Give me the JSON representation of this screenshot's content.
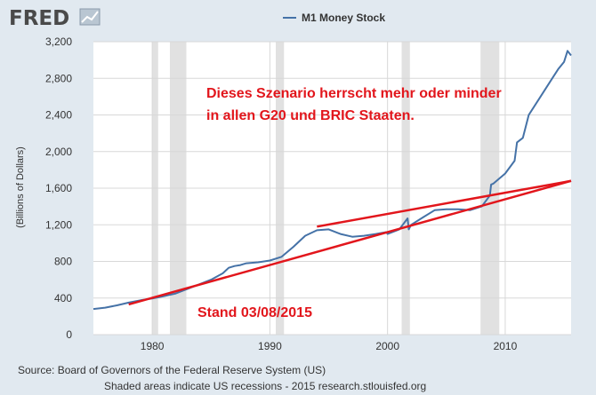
{
  "branding": {
    "logo_text": "FRED",
    "logo_color": "#4a4a4a",
    "logo_icon": "line-chart-icon"
  },
  "footer": {
    "source": "Source: Board of Governors of the Federal Reserve System (US)",
    "note": "Shaded areas indicate US recessions - 2015 research.stlouisfed.org"
  },
  "annotations": {
    "line1": "Dieses Szenario herrscht mehr oder minder",
    "line2": "in allen G20 und BRIC Staaten.",
    "stand": "Stand 03/08/2015",
    "color": "#e2161c"
  },
  "chart_data": {
    "type": "line",
    "title": "",
    "xlabel": "",
    "ylabel": "(Billions of Dollars)",
    "xlim": [
      1975,
      2015.6
    ],
    "ylim": [
      0,
      3200
    ],
    "xticks": [
      1980,
      1990,
      2000,
      2010
    ],
    "xtick_labels": [
      "1980",
      "1990",
      "2000",
      "2010"
    ],
    "yticks": [
      0,
      400,
      800,
      1200,
      1600,
      2000,
      2400,
      2800,
      3200
    ],
    "ytick_labels": [
      "0",
      "400",
      "800",
      "1,200",
      "1,600",
      "2,000",
      "2,400",
      "2,800",
      "3,200"
    ],
    "grid": true,
    "legend_position": "top-center",
    "series": [
      {
        "name": "M1 Money Stock",
        "color": "#4572a7",
        "x": [
          1975,
          1976,
          1977,
          1978,
          1979,
          1980,
          1981,
          1982,
          1983,
          1984,
          1985,
          1986,
          1986.5,
          1987,
          1987.5,
          1988,
          1989,
          1990,
          1991,
          1992,
          1993,
          1994,
          1995,
          1996,
          1997,
          1998,
          1999,
          1999.9,
          2000,
          2001,
          2001.7,
          2001.8,
          2002,
          2003,
          2004,
          2005,
          2006,
          2007,
          2008,
          2008.7,
          2008.8,
          2009,
          2010,
          2010.8,
          2011,
          2011.5,
          2012,
          2013,
          2014,
          2014.5,
          2015,
          2015.3,
          2015.6
        ],
        "y": [
          280,
          295,
          320,
          350,
          375,
          395,
          420,
          450,
          500,
          550,
          600,
          670,
          730,
          750,
          760,
          780,
          790,
          810,
          850,
          960,
          1080,
          1140,
          1150,
          1100,
          1070,
          1080,
          1100,
          1120,
          1100,
          1150,
          1270,
          1150,
          1200,
          1280,
          1360,
          1370,
          1370,
          1360,
          1400,
          1520,
          1640,
          1650,
          1760,
          1900,
          2100,
          2150,
          2400,
          2600,
          2800,
          2900,
          2980,
          3100,
          3050
        ]
      }
    ],
    "overlay_lines": [
      {
        "name": "",
        "color": "#e2161c",
        "x": [
          1978,
          2015.6
        ],
        "y": [
          330,
          1680
        ]
      },
      {
        "name": "",
        "color": "#e2161c",
        "x": [
          1994,
          2015.6
        ],
        "y": [
          1180,
          1680
        ]
      }
    ],
    "recessions": [
      [
        1980.0,
        1980.5
      ],
      [
        1981.5,
        1982.9
      ],
      [
        1990.5,
        1991.2
      ],
      [
        2001.2,
        2001.9
      ],
      [
        2007.9,
        2009.5
      ]
    ],
    "recession_color": "#e1e1e1"
  }
}
